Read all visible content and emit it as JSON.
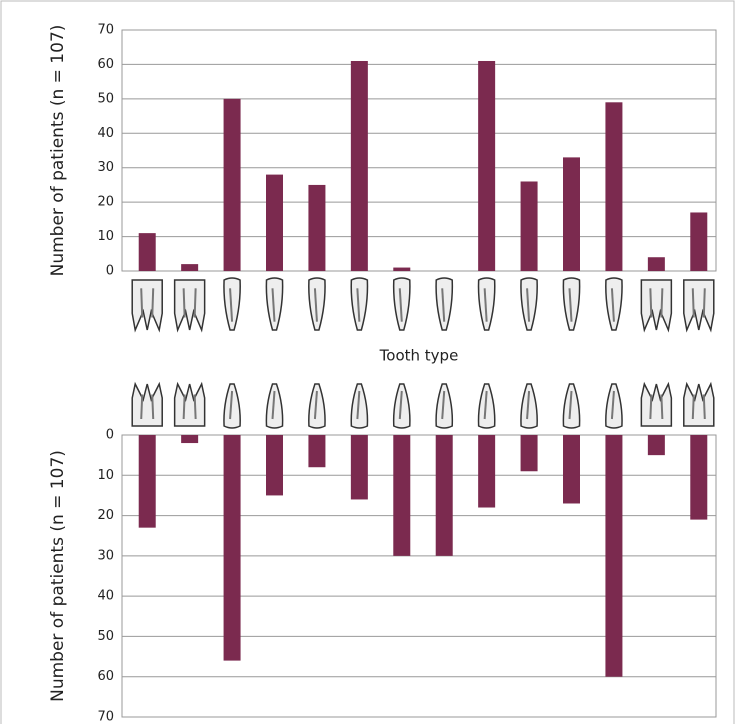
{
  "chart_data": [
    {
      "type": "bar",
      "ylabel": "Number of patients (n = 107)",
      "xlabel": "Tooth type",
      "categories": [
        null,
        null,
        null,
        null,
        null,
        null,
        null,
        null,
        null,
        null,
        null,
        null,
        null,
        null
      ],
      "values": [
        11,
        2,
        50,
        28,
        25,
        61,
        1,
        0,
        61,
        26,
        33,
        49,
        4,
        17
      ],
      "color": "#7b2a4f",
      "ylim": [
        0,
        70
      ],
      "yticks": [
        0,
        10,
        20,
        30,
        40,
        50,
        60,
        70
      ],
      "grid": true,
      "y_reversed": false
    },
    {
      "type": "bar",
      "ylabel": "Number of patients (n = 107)",
      "categories": [
        null,
        null,
        null,
        null,
        null,
        null,
        null,
        null,
        null,
        null,
        null,
        null,
        null,
        null
      ],
      "values": [
        23,
        2,
        56,
        15,
        8,
        16,
        30,
        30,
        18,
        9,
        17,
        60,
        5,
        21
      ],
      "color": "#7b2a4f",
      "ylim": [
        0,
        70
      ],
      "yticks": [
        0,
        10,
        20,
        30,
        40,
        50,
        60,
        70
      ],
      "grid": true,
      "y_reversed": true
    }
  ]
}
